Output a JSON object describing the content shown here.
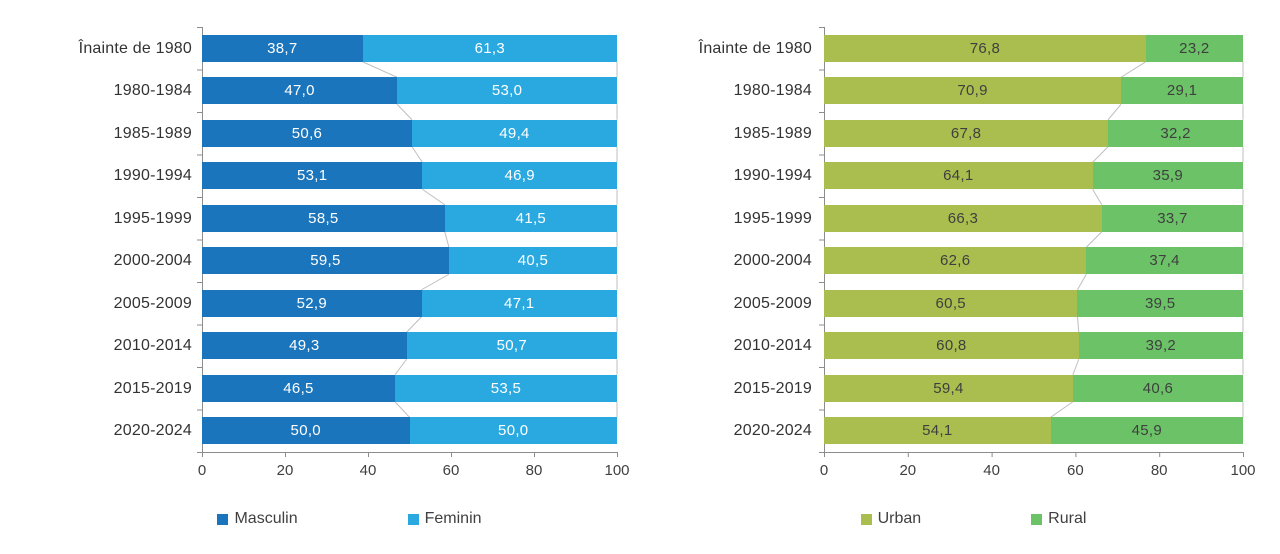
{
  "chart_data": [
    {
      "type": "bar",
      "orientation": "horizontal",
      "stacked": true,
      "title": "",
      "xlabel": "",
      "ylabel": "",
      "xlim": [
        0,
        100
      ],
      "x_ticks": [
        "0",
        "20",
        "40",
        "60",
        "80",
        "100"
      ],
      "grid": false,
      "legend_position": "bottom",
      "categories": [
        "Înainte de 1980",
        "1980-1984",
        "1985-1989",
        "1990-1994",
        "1995-1999",
        "2000-2004",
        "2005-2009",
        "2010-2014",
        "2015-2019",
        "2020-2024"
      ],
      "series": [
        {
          "name": "Masculin",
          "color": "#1B75BC",
          "label_color": "#FFFFFF",
          "values": [
            38.7,
            47.0,
            50.6,
            53.1,
            58.5,
            59.5,
            52.9,
            49.3,
            46.5,
            50.0
          ],
          "labels": [
            "38,7",
            "47,0",
            "50,6",
            "53,1",
            "58,5",
            "59,5",
            "52,9",
            "49,3",
            "46,5",
            "50,0"
          ]
        },
        {
          "name": "Feminin",
          "color": "#29A9E0",
          "label_color": "#FFFFFF",
          "values": [
            61.3,
            53.0,
            49.4,
            46.9,
            41.5,
            40.5,
            47.1,
            50.7,
            53.5,
            50.0
          ],
          "labels": [
            "61,3",
            "53,0",
            "49,4",
            "46,9",
            "41,5",
            "40,5",
            "47,1",
            "50,7",
            "53,5",
            "50,0"
          ]
        }
      ]
    },
    {
      "type": "bar",
      "orientation": "horizontal",
      "stacked": true,
      "title": "",
      "xlabel": "",
      "ylabel": "",
      "xlim": [
        0,
        100
      ],
      "x_ticks": [
        "0",
        "20",
        "40",
        "60",
        "80",
        "100"
      ],
      "grid": false,
      "legend_position": "bottom",
      "categories": [
        "Înainte de 1980",
        "1980-1984",
        "1985-1989",
        "1990-1994",
        "1995-1999",
        "2000-2004",
        "2005-2009",
        "2010-2014",
        "2015-2019",
        "2020-2024"
      ],
      "series": [
        {
          "name": "Urban",
          "color": "#A9BE4F",
          "label_color": "#3F3F3F",
          "values": [
            76.8,
            70.9,
            67.8,
            64.1,
            66.3,
            62.6,
            60.5,
            60.8,
            59.4,
            54.1
          ],
          "labels": [
            "76,8",
            "70,9",
            "67,8",
            "64,1",
            "66,3",
            "62,6",
            "60,5",
            "60,8",
            "59,4",
            "54,1"
          ]
        },
        {
          "name": "Rural",
          "color": "#6CC367",
          "label_color": "#3F3F3F",
          "values": [
            23.2,
            29.1,
            32.2,
            35.9,
            33.7,
            37.4,
            39.5,
            39.2,
            40.6,
            45.9
          ],
          "labels": [
            "23,2",
            "29,1",
            "32,2",
            "35,9",
            "33,7",
            "37,4",
            "39,5",
            "39,2",
            "40,6",
            "45,9"
          ]
        }
      ]
    }
  ],
  "style": {
    "axis_line_color": "#8C8C8C",
    "connector_line_color": "#BFBFBF",
    "tick_label_color": "#404040",
    "category_label_color": "#333333",
    "legend_text_color": "#404040"
  }
}
